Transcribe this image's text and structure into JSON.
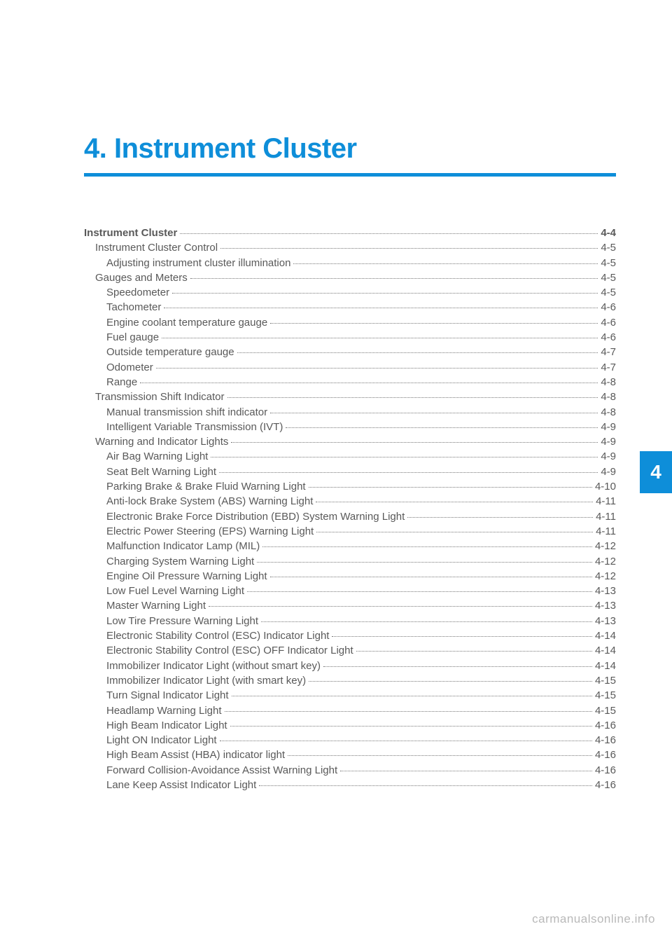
{
  "chapter": {
    "number": "4",
    "title": "4. Instrument Cluster"
  },
  "colors": {
    "accent": "#0e8ed9",
    "text": "#595959",
    "watermark": "#b9b9b9",
    "background": "#ffffff"
  },
  "side_tab": "4",
  "watermark": "carmanualsonline.info",
  "toc": [
    {
      "level": 0,
      "label": "Instrument Cluster",
      "page": "4-4"
    },
    {
      "level": 1,
      "label": "Instrument Cluster Control",
      "page": "4-5"
    },
    {
      "level": 2,
      "label": "Adjusting instrument cluster illumination",
      "page": "4-5"
    },
    {
      "level": 1,
      "label": "Gauges and Meters",
      "page": "4-5"
    },
    {
      "level": 2,
      "label": "Speedometer",
      "page": "4-5"
    },
    {
      "level": 2,
      "label": "Tachometer",
      "page": "4-6"
    },
    {
      "level": 2,
      "label": "Engine coolant temperature gauge",
      "page": "4-6"
    },
    {
      "level": 2,
      "label": "Fuel gauge",
      "page": "4-6"
    },
    {
      "level": 2,
      "label": "Outside temperature gauge",
      "page": "4-7"
    },
    {
      "level": 2,
      "label": "Odometer",
      "page": "4-7"
    },
    {
      "level": 2,
      "label": "Range",
      "page": "4-8"
    },
    {
      "level": 1,
      "label": "Transmission Shift Indicator",
      "page": "4-8"
    },
    {
      "level": 2,
      "label": "Manual transmission shift indicator",
      "page": "4-8"
    },
    {
      "level": 2,
      "label": "Intelligent Variable Transmission (IVT)",
      "page": "4-9"
    },
    {
      "level": 1,
      "label": "Warning and Indicator Lights",
      "page": "4-9"
    },
    {
      "level": 2,
      "label": "Air Bag Warning Light",
      "page": "4-9"
    },
    {
      "level": 2,
      "label": "Seat Belt Warning Light",
      "page": "4-9"
    },
    {
      "level": 2,
      "label": "Parking Brake & Brake Fluid Warning Light",
      "page": "4-10"
    },
    {
      "level": 2,
      "label": "Anti-lock Brake System (ABS) Warning Light",
      "page": "4-11"
    },
    {
      "level": 2,
      "label": "Electronic Brake Force Distribution (EBD) System Warning Light",
      "page": "4-11"
    },
    {
      "level": 2,
      "label": "Electric Power Steering (EPS) Warning Light",
      "page": "4-11"
    },
    {
      "level": 2,
      "label": "Malfunction Indicator Lamp (MIL)",
      "page": "4-12"
    },
    {
      "level": 2,
      "label": "Charging System Warning Light",
      "page": "4-12"
    },
    {
      "level": 2,
      "label": "Engine Oil Pressure Warning Light",
      "page": "4-12"
    },
    {
      "level": 2,
      "label": "Low Fuel Level Warning Light",
      "page": "4-13"
    },
    {
      "level": 2,
      "label": "Master Warning Light",
      "page": "4-13"
    },
    {
      "level": 2,
      "label": "Low Tire Pressure Warning Light",
      "page": "4-13"
    },
    {
      "level": 2,
      "label": "Electronic Stability Control (ESC) Indicator Light",
      "page": "4-14"
    },
    {
      "level": 2,
      "label": "Electronic Stability Control (ESC) OFF Indicator Light",
      "page": "4-14"
    },
    {
      "level": 2,
      "label": "Immobilizer Indicator Light (without smart key)",
      "page": "4-14"
    },
    {
      "level": 2,
      "label": "Immobilizer Indicator Light (with smart key)",
      "page": "4-15"
    },
    {
      "level": 2,
      "label": "Turn Signal Indicator Light",
      "page": "4-15"
    },
    {
      "level": 2,
      "label": "Headlamp Warning Light",
      "page": "4-15"
    },
    {
      "level": 2,
      "label": "High Beam Indicator Light",
      "page": "4-16"
    },
    {
      "level": 2,
      "label": "Light ON Indicator Light",
      "page": "4-16"
    },
    {
      "level": 2,
      "label": "High Beam Assist (HBA) indicator light",
      "page": "4-16"
    },
    {
      "level": 2,
      "label": "Forward Collision-Avoidance Assist Warning Light",
      "page": "4-16"
    },
    {
      "level": 2,
      "label": "Lane Keep Assist Indicator Light",
      "page": "4-16"
    }
  ]
}
